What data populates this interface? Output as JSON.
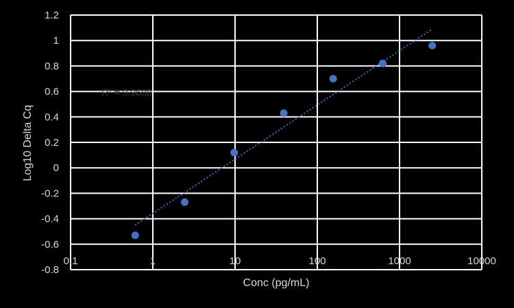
{
  "chart_data": {
    "type": "scatter",
    "title": "",
    "xlabel": "Conc (pg/mL)",
    "ylabel": "Log10 Delta Cq",
    "x_scale": "log",
    "xlim": [
      0.1,
      10000
    ],
    "ylim": [
      -0.8,
      1.2
    ],
    "x_ticks": [
      "0.1",
      "1",
      "10",
      "100",
      "1000",
      "10000"
    ],
    "y_ticks": [
      "-0.8",
      "-0.6",
      "-0.4",
      "-0.2",
      "0",
      "0.2",
      "0.4",
      "0.6",
      "0.8",
      "1",
      "1.2"
    ],
    "grid": true,
    "series": [
      {
        "color": "#4472c4",
        "points": [
          {
            "x": 0.61,
            "y": -0.53
          },
          {
            "x": 2.44,
            "y": -0.27
          },
          {
            "x": 9.77,
            "y": 0.12
          },
          {
            "x": 39.1,
            "y": 0.43
          },
          {
            "x": 156,
            "y": 0.7
          },
          {
            "x": 625,
            "y": 0.82
          },
          {
            "x": 2500,
            "y": 0.96
          }
        ]
      }
    ],
    "trendline": {
      "type": "logarithmic",
      "style": "dotted",
      "color": "#4472c4",
      "from": {
        "x": 0.61,
        "y": -0.45
      },
      "to": {
        "x": 2500,
        "y": 1.09
      }
    },
    "annotations": [
      {
        "text": "R² = 0.9688"
      }
    ]
  }
}
